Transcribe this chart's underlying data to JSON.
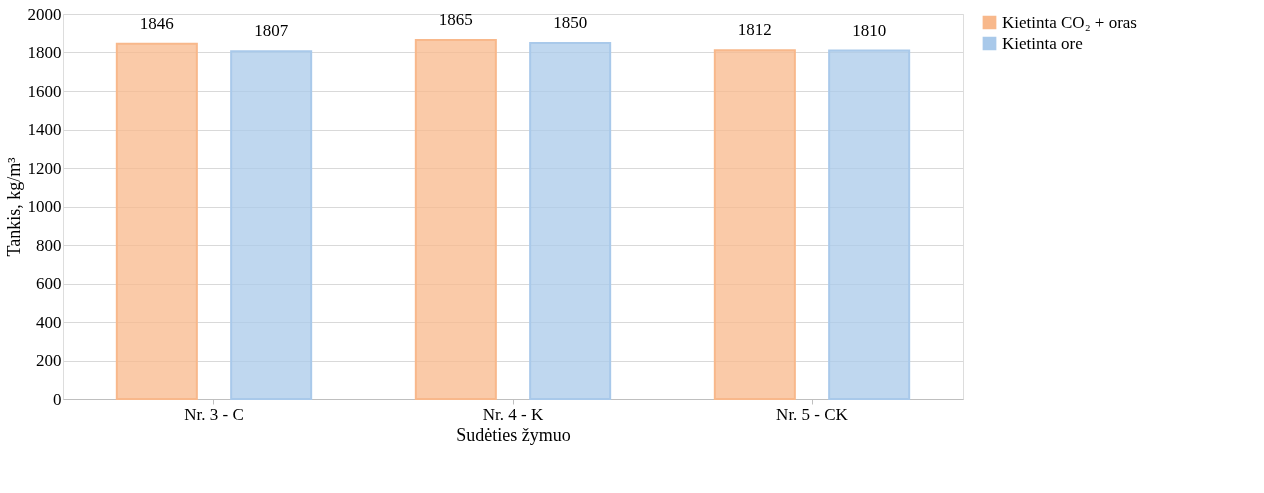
{
  "chart_data": {
    "type": "bar",
    "xlabel": "Sudėties žymuo",
    "ylabel": "Tankis, kg/m³",
    "categories": [
      "Nr. 3 - C",
      "Nr. 4 - K",
      "Nr. 5 - CK"
    ],
    "series": [
      {
        "name": "Kietinta CO₂ + oras",
        "color": "#f8b88b",
        "values": [
          1846,
          1865,
          1812
        ]
      },
      {
        "name": "Kietinta ore",
        "color": "#a9c9ea",
        "values": [
          1807,
          1850,
          1810
        ]
      }
    ],
    "ylim": [
      0,
      2000
    ],
    "yticks": [
      0,
      200,
      400,
      600,
      800,
      1000,
      1200,
      1400,
      1600,
      1800,
      2000
    ],
    "grid": "y",
    "legend": "right",
    "data_labels": true
  }
}
